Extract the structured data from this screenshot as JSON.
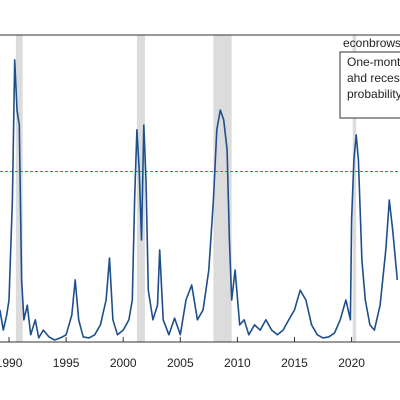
{
  "chart_data": {
    "type": "line",
    "annotations": {
      "source": "econbrowser",
      "legend_lines": [
        "One-mont",
        "ahd reces",
        "probability"
      ]
    },
    "x": [
      1989.2,
      1989.5,
      1989.8,
      1990.0,
      1990.3,
      1990.5,
      1990.7,
      1990.9,
      1991.1,
      1991.3,
      1991.6,
      1991.9,
      1992.3,
      1992.6,
      1993.0,
      1993.5,
      1994.0,
      1994.5,
      1995.0,
      1995.5,
      1995.8,
      1996.1,
      1996.5,
      1997.0,
      1997.5,
      1998.0,
      1998.5,
      1998.8,
      1999.1,
      1999.5,
      2000.0,
      2000.5,
      2000.8,
      2001.0,
      2001.2,
      2001.4,
      2001.6,
      2001.8,
      2002.0,
      2002.2,
      2002.6,
      2003.0,
      2003.2,
      2003.5,
      2004.0,
      2004.5,
      2005.0,
      2005.5,
      2006.0,
      2006.5,
      2007.0,
      2007.5,
      2007.9,
      2008.2,
      2008.5,
      2008.8,
      2009.1,
      2009.3,
      2009.5,
      2009.8,
      2010.2,
      2010.6,
      2011.0,
      2011.5,
      2012.0,
      2012.5,
      2013.0,
      2013.5,
      2014.0,
      2014.5,
      2015.0,
      2015.5,
      2016.0,
      2016.5,
      2017.0,
      2017.5,
      2018.0,
      2018.5,
      2019.0,
      2019.5,
      2019.9,
      2020.0,
      2020.2,
      2020.4,
      2020.6,
      2020.9,
      2021.2,
      2021.6,
      2022.0,
      2022.5,
      2023.0,
      2023.3,
      2023.6,
      2024.0
    ],
    "series": [
      {
        "color": "#1f4e8c",
        "values": [
          0.094,
          0.035,
          0.079,
          0.123,
          0.416,
          0.827,
          0.68,
          0.636,
          0.182,
          0.065,
          0.108,
          0.021,
          0.065,
          0.012,
          0.035,
          0.015,
          0.006,
          0.012,
          0.021,
          0.079,
          0.182,
          0.065,
          0.015,
          0.012,
          0.021,
          0.05,
          0.123,
          0.246,
          0.065,
          0.021,
          0.035,
          0.065,
          0.123,
          0.416,
          0.622,
          0.504,
          0.299,
          0.636,
          0.475,
          0.152,
          0.065,
          0.108,
          0.27,
          0.065,
          0.021,
          0.07,
          0.021,
          0.123,
          0.167,
          0.065,
          0.094,
          0.211,
          0.416,
          0.622,
          0.68,
          0.651,
          0.563,
          0.299,
          0.123,
          0.211,
          0.05,
          0.065,
          0.021,
          0.05,
          0.035,
          0.065,
          0.035,
          0.021,
          0.035,
          0.065,
          0.094,
          0.152,
          0.123,
          0.05,
          0.021,
          0.012,
          0.015,
          0.026,
          0.065,
          0.123,
          0.065,
          0.358,
          0.534,
          0.607,
          0.534,
          0.24,
          0.123,
          0.05,
          0.035,
          0.108,
          0.27,
          0.416,
          0.328,
          0.182
        ]
      }
    ],
    "recessions": [
      [
        1990.6,
        1991.2
      ],
      [
        2001.2,
        2001.9
      ],
      [
        2007.9,
        2009.5
      ],
      [
        2020.1,
        2020.4
      ]
    ],
    "recession_color": "#dcdcdc",
    "threshold": 0.5,
    "threshold_color": "#e0404a",
    "xlim": [
      1989.21,
      2024.24
    ],
    "xticks": [
      1990,
      1995,
      2000,
      2005,
      2010,
      2015,
      2020
    ],
    "ylim": [
      0,
      0.9
    ]
  }
}
